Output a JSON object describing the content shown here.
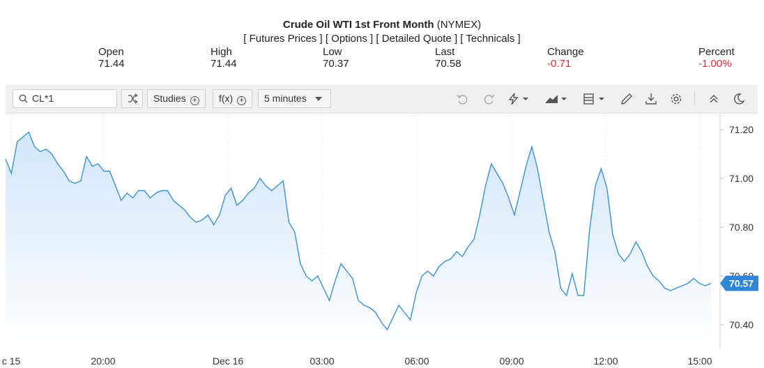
{
  "header": {
    "title_bold": "Crude Oil WTI 1st Front Month",
    "title_exchange": "(NYMEX)",
    "links": [
      "[ Futures Prices ]",
      "[ Options ]",
      "[ Detailed Quote ]",
      "[ Technicals ]"
    ]
  },
  "quote": {
    "open_label": "Open",
    "open": "71.44",
    "high_label": "High",
    "high": "71.44",
    "low_label": "Low",
    "low": "70.37",
    "last_label": "Last",
    "last": "70.58",
    "change_label": "Change",
    "change": "-0.71",
    "percent_label": "Percent",
    "percent": "-1.00%",
    "negative_color": "#e0282e"
  },
  "toolbar": {
    "symbol": "CL*1",
    "studies_label": "Studies",
    "fx_label": "f(x)",
    "interval_label": "5 minutes",
    "icons": [
      "compare-icon",
      "undo-icon",
      "redo-icon",
      "lightning-icon",
      "chart-type-icon",
      "layout-icon",
      "pencil-icon",
      "download-icon",
      "gear-icon",
      "collapse-icon",
      "moon-icon"
    ]
  },
  "chart_data": {
    "type": "area",
    "line_color": "#3a8fd9",
    "fill_color": "#cfe5fa",
    "ylim": [
      70.3,
      71.26
    ],
    "y_ticks": [
      "71.20",
      "71.00",
      "70.80",
      "70.60",
      "70.40"
    ],
    "x_ticks": [
      "c 15",
      "20:00",
      "Dec 16",
      "03:00",
      "06:00",
      "09:00",
      "12:00",
      "15:00"
    ],
    "last_price_label": "70.57",
    "last_price_value": 70.57,
    "values": [
      71.08,
      71.02,
      71.15,
      71.17,
      71.19,
      71.13,
      71.11,
      71.12,
      71.1,
      71.06,
      71.03,
      70.99,
      70.98,
      70.99,
      71.09,
      71.05,
      71.06,
      71.03,
      71.03,
      70.97,
      70.91,
      70.94,
      70.92,
      70.95,
      70.95,
      70.92,
      70.94,
      70.95,
      70.95,
      70.91,
      70.89,
      70.87,
      70.84,
      70.82,
      70.83,
      70.85,
      70.81,
      70.85,
      70.93,
      70.96,
      70.89,
      70.91,
      70.94,
      70.96,
      71.0,
      70.97,
      70.95,
      70.97,
      70.99,
      70.82,
      70.78,
      70.65,
      70.6,
      70.58,
      70.6,
      70.55,
      70.5,
      70.58,
      70.65,
      70.62,
      70.59,
      70.5,
      70.48,
      70.47,
      70.45,
      70.41,
      70.38,
      70.43,
      70.48,
      70.45,
      70.42,
      70.53,
      70.6,
      70.62,
      70.6,
      70.64,
      70.66,
      70.67,
      70.7,
      70.68,
      70.72,
      70.75,
      70.85,
      70.97,
      71.06,
      71.02,
      70.98,
      70.92,
      70.85,
      70.95,
      71.05,
      71.13,
      71.04,
      70.91,
      70.78,
      70.7,
      70.55,
      70.52,
      70.61,
      70.52,
      70.52,
      70.79,
      70.97,
      71.04,
      70.96,
      70.77,
      70.69,
      70.66,
      70.69,
      70.74,
      70.7,
      70.64,
      70.6,
      70.58,
      70.55,
      70.54,
      70.55,
      70.56,
      70.57,
      70.59,
      70.57,
      70.56,
      70.57
    ]
  }
}
